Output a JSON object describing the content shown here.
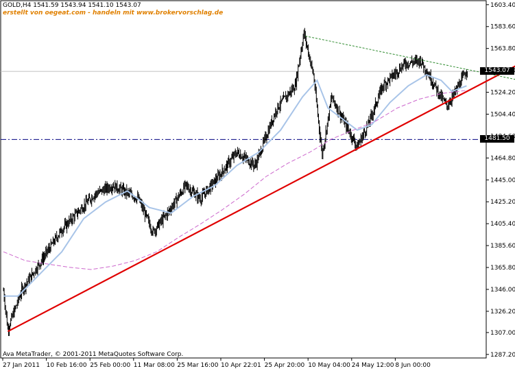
{
  "header": {
    "symbol_line": "GOLD,H4  1541.59 1543.94 1541.10 1543.07",
    "credit": "erstellt von oegeat.com - handeln mit www.brokervorschlag.de"
  },
  "footer": {
    "copyright": "Ava MetaTrader, © 2001-2011 MetaQuotes Software Corp."
  },
  "price_tags": {
    "current": "1543.07",
    "level": "1481.50"
  },
  "colors": {
    "background": "#ffffff",
    "candles": "#000000",
    "fast_ma": "#a8c4e8",
    "slow_ma": "#cc66cc",
    "support_line": "#e00000",
    "resistance_line": "#2e8b2e",
    "horizontal_level": "#000080"
  },
  "chart_data": {
    "type": "line",
    "symbol": "GOLD",
    "timeframe": "H4",
    "ohlc": {
      "open": 1541.59,
      "high": 1543.94,
      "low": 1541.1,
      "close": 1543.07
    },
    "x_tick_labels": [
      "27 Jan 2011",
      "10 Feb 16:00",
      "25 Feb 00:00",
      "11 Mar 08:00",
      "25 Mar 16:00",
      "10 Apr 22:01",
      "25 Apr 20:00",
      "10 May 04:00",
      "24 May 12:00",
      "8 Jun 00:00"
    ],
    "y_tick_labels": [
      "1603.40",
      "1583.60",
      "1563.80",
      "1544.00",
      "1524.20",
      "1504.40",
      "1484.60",
      "1464.80",
      "1445.00",
      "1425.20",
      "1405.40",
      "1385.60",
      "1365.80",
      "1346.00",
      "1326.20",
      "1307.00",
      "1287.20"
    ],
    "ylim": [
      1284,
      1607
    ],
    "n_bars": 660,
    "price_path": [
      [
        0,
        1345
      ],
      [
        6,
        1310
      ],
      [
        25,
        1345
      ],
      [
        45,
        1365
      ],
      [
        80,
        1400
      ],
      [
        105,
        1418
      ],
      [
        125,
        1432
      ],
      [
        150,
        1440
      ],
      [
        185,
        1428
      ],
      [
        205,
        1398
      ],
      [
        225,
        1415
      ],
      [
        250,
        1440
      ],
      [
        270,
        1428
      ],
      [
        295,
        1448
      ],
      [
        320,
        1470
      ],
      [
        345,
        1458
      ],
      [
        375,
        1510
      ],
      [
        400,
        1530
      ],
      [
        412,
        1578
      ],
      [
        425,
        1540
      ],
      [
        437,
        1468
      ],
      [
        450,
        1520
      ],
      [
        465,
        1500
      ],
      [
        485,
        1475
      ],
      [
        500,
        1495
      ],
      [
        520,
        1530
      ],
      [
        550,
        1550
      ],
      [
        572,
        1553
      ],
      [
        600,
        1520
      ],
      [
        608,
        1512
      ],
      [
        620,
        1525
      ],
      [
        636,
        1545
      ]
    ],
    "series": [
      {
        "points": [
          [
            0,
            1340
          ],
          [
            20,
            1340
          ],
          [
            50,
            1360
          ],
          [
            80,
            1380
          ],
          [
            110,
            1410
          ],
          [
            140,
            1425
          ],
          [
            170,
            1435
          ],
          [
            200,
            1420
          ],
          [
            230,
            1415
          ],
          [
            260,
            1430
          ],
          [
            290,
            1440
          ],
          [
            320,
            1458
          ],
          [
            350,
            1470
          ],
          [
            380,
            1490
          ],
          [
            410,
            1520
          ],
          [
            430,
            1535
          ],
          [
            445,
            1510
          ],
          [
            465,
            1500
          ],
          [
            485,
            1490
          ],
          [
            505,
            1495
          ],
          [
            530,
            1515
          ],
          [
            555,
            1530
          ],
          [
            580,
            1540
          ],
          [
            600,
            1535
          ],
          [
            615,
            1525
          ],
          [
            635,
            1530
          ]
        ]
      },
      {
        "points": [
          [
            0,
            1380
          ],
          [
            30,
            1372
          ],
          [
            60,
            1369
          ],
          [
            90,
            1366
          ],
          [
            120,
            1364
          ],
          [
            150,
            1367
          ],
          [
            180,
            1372
          ],
          [
            210,
            1380
          ],
          [
            240,
            1393
          ],
          [
            270,
            1405
          ],
          [
            300,
            1418
          ],
          [
            330,
            1432
          ],
          [
            360,
            1448
          ],
          [
            390,
            1460
          ],
          [
            420,
            1470
          ],
          [
            450,
            1482
          ],
          [
            480,
            1490
          ],
          [
            510,
            1498
          ],
          [
            540,
            1510
          ],
          [
            570,
            1518
          ],
          [
            600,
            1523
          ],
          [
            635,
            1526
          ]
        ]
      }
    ],
    "trendlines": [
      {
        "from": [
          6,
          1308
        ],
        "to": [
          708,
          1550
        ]
      },
      {
        "from": [
          414,
          1575
        ],
        "to": [
          708,
          1535
        ]
      }
    ],
    "horizontal_level": 1481.5,
    "current_price": 1543.07
  }
}
